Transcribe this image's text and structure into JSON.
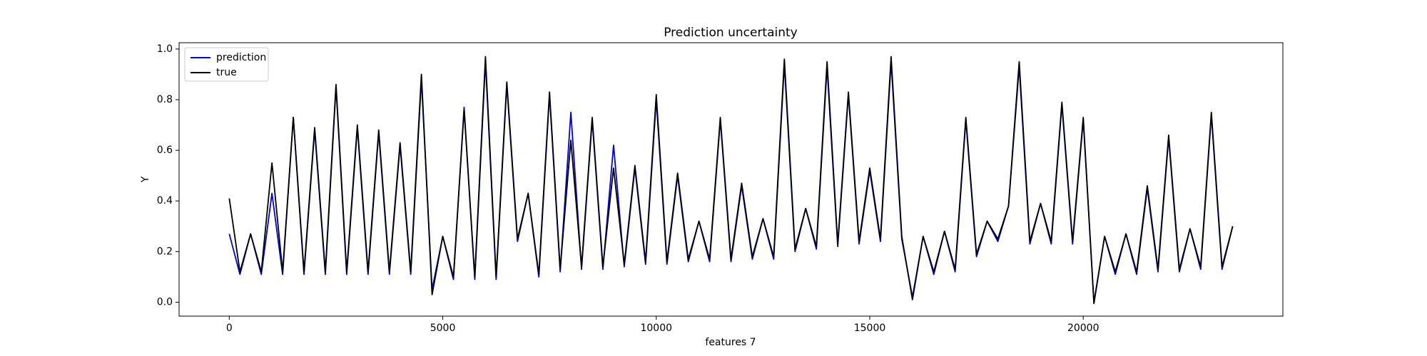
{
  "chart_data": {
    "type": "line",
    "title": "Prediction uncertainty",
    "xlabel": "features 7",
    "ylabel": "Y",
    "x": [
      0,
      250,
      500,
      750,
      1000,
      1250,
      1500,
      1750,
      2000,
      2250,
      2500,
      2750,
      3000,
      3250,
      3500,
      3750,
      4000,
      4250,
      4500,
      4750,
      5000,
      5250,
      5500,
      5750,
      6000,
      6250,
      6500,
      6750,
      7000,
      7250,
      7500,
      7750,
      8000,
      8250,
      8500,
      8750,
      9000,
      9250,
      9500,
      9750,
      10000,
      10250,
      10500,
      10750,
      11000,
      11250,
      11500,
      11750,
      12000,
      12250,
      12500,
      12750,
      13000,
      13250,
      13500,
      13750,
      14000,
      14250,
      14500,
      14750,
      15000,
      15250,
      15500,
      15750,
      16000,
      16250,
      16500,
      16750,
      17000,
      17250,
      17500,
      17750,
      18000,
      18250,
      18500,
      18750,
      19000,
      19250,
      19500,
      19750,
      20000,
      20250,
      20500,
      20750,
      21000,
      21250,
      21500,
      21750,
      22000,
      22250,
      22500,
      22750,
      23000,
      23250,
      23500
    ],
    "series": [
      {
        "name": "prediction",
        "color": "#0000cc",
        "values": [
          0.27,
          0.11,
          0.27,
          0.11,
          0.43,
          0.11,
          0.73,
          0.11,
          0.68,
          0.11,
          0.85,
          0.11,
          0.69,
          0.11,
          0.67,
          0.11,
          0.62,
          0.11,
          0.88,
          0.05,
          0.26,
          0.09,
          0.77,
          0.09,
          0.95,
          0.09,
          0.86,
          0.24,
          0.43,
          0.1,
          0.82,
          0.12,
          0.75,
          0.13,
          0.72,
          0.13,
          0.62,
          0.14,
          0.53,
          0.15,
          0.8,
          0.15,
          0.5,
          0.16,
          0.32,
          0.16,
          0.72,
          0.16,
          0.46,
          0.17,
          0.33,
          0.17,
          0.94,
          0.2,
          0.37,
          0.21,
          0.93,
          0.22,
          0.82,
          0.23,
          0.52,
          0.24,
          0.95,
          0.25,
          0.02,
          0.26,
          0.11,
          0.28,
          0.12,
          0.72,
          0.18,
          0.32,
          0.24,
          0.38,
          0.93,
          0.23,
          0.39,
          0.23,
          0.78,
          0.23,
          0.72,
          0.0,
          0.26,
          0.11,
          0.27,
          0.11,
          0.45,
          0.12,
          0.65,
          0.12,
          0.29,
          0.13,
          0.74,
          0.13,
          0.3
        ]
      },
      {
        "name": "true",
        "color": "#000000",
        "values": [
          0.41,
          0.12,
          0.27,
          0.12,
          0.55,
          0.12,
          0.73,
          0.12,
          0.69,
          0.12,
          0.86,
          0.12,
          0.7,
          0.12,
          0.68,
          0.12,
          0.63,
          0.12,
          0.9,
          0.03,
          0.26,
          0.1,
          0.76,
          0.1,
          0.97,
          0.1,
          0.87,
          0.25,
          0.43,
          0.11,
          0.83,
          0.13,
          0.64,
          0.14,
          0.73,
          0.14,
          0.53,
          0.15,
          0.54,
          0.16,
          0.82,
          0.16,
          0.51,
          0.17,
          0.32,
          0.17,
          0.73,
          0.17,
          0.47,
          0.18,
          0.33,
          0.18,
          0.96,
          0.21,
          0.37,
          0.22,
          0.95,
          0.23,
          0.83,
          0.24,
          0.53,
          0.25,
          0.97,
          0.26,
          0.01,
          0.26,
          0.12,
          0.28,
          0.13,
          0.73,
          0.19,
          0.32,
          0.25,
          0.38,
          0.95,
          0.24,
          0.39,
          0.24,
          0.79,
          0.24,
          0.73,
          -0.005,
          0.26,
          0.12,
          0.27,
          0.12,
          0.46,
          0.13,
          0.66,
          0.13,
          0.29,
          0.14,
          0.75,
          0.14,
          0.3
        ]
      }
    ],
    "xlim": [
      -1175,
      24675
    ],
    "xticks": [
      0,
      5000,
      10000,
      15000,
      20000
    ],
    "ylim": [
      -0.055,
      1.025
    ],
    "yticks": [
      {
        "value": 0,
        "label": "0.0"
      },
      {
        "value": 0.2,
        "label": "0.2"
      },
      {
        "value": 0.4,
        "label": "0.4"
      },
      {
        "value": 0.6,
        "label": "0.6"
      },
      {
        "value": 0.8,
        "label": "0.8"
      },
      {
        "value": 1,
        "label": "1.0"
      }
    ],
    "grid": false,
    "legend": "upper left"
  }
}
